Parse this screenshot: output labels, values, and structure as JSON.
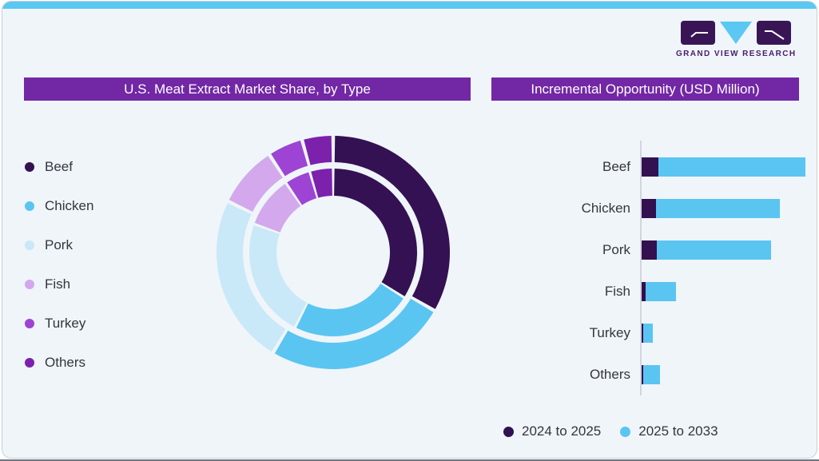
{
  "page": {
    "background": "#eff5f9",
    "top_accent_color": "#5ac8f2",
    "card_border_color": "#c7d0d9",
    "text_color": "#35353f",
    "header_bg_color": "#7227a5"
  },
  "logo": {
    "text": "GRAND VIEW RESEARCH",
    "block_color": "#3a1556",
    "triangle_color": "#5ac8f2",
    "wordmark_color": "#4b1b70"
  },
  "left_panel": {
    "title": "U.S. Meat Extract Market Share, by Type",
    "legend": [
      {
        "label": "Beef",
        "color": "#341152"
      },
      {
        "label": "Chicken",
        "color": "#5ac5f1"
      },
      {
        "label": "Pork",
        "color": "#c9e8f8"
      },
      {
        "label": "Fish",
        "color": "#d4a8ec"
      },
      {
        "label": "Turkey",
        "color": "#9d44d4"
      },
      {
        "label": "Others",
        "color": "#7b21ac"
      }
    ]
  },
  "right_panel": {
    "title": "Incremental Opportunity (USD Million)",
    "legend": [
      {
        "label": "2024 to 2025",
        "color": "#331050"
      },
      {
        "label": "2025 to 2033",
        "color": "#5ac5f1"
      }
    ]
  },
  "chart_data": [
    {
      "type": "donut",
      "title": "U.S. Meat Extract Market Share, by Type",
      "categories": [
        "Beef",
        "Chicken",
        "Pork",
        "Fish",
        "Turkey",
        "Others"
      ],
      "colors": [
        "#341152",
        "#5ac5f1",
        "#c9e8f8",
        "#d4a8ec",
        "#9d44d4",
        "#7b21ac"
      ],
      "units": "percent share (no numeric labels shown; estimated from arc angles)",
      "start_angle_deg": 0,
      "direction": "clockwise",
      "rings": [
        {
          "name": "outer",
          "values": [
            33.3,
            25.3,
            23.6,
            8.6,
            4.9,
            4.3
          ]
        },
        {
          "name": "inner",
          "values": [
            34.0,
            23.5,
            23.0,
            10.0,
            5.0,
            4.5
          ]
        }
      ]
    },
    {
      "type": "bar",
      "orientation": "horizontal",
      "stacked": true,
      "title": "Incremental Opportunity (USD Million)",
      "categories": [
        "Beef",
        "Chicken",
        "Pork",
        "Fish",
        "Turkey",
        "Others"
      ],
      "series": [
        {
          "name": "2024 to 2025",
          "color": "#331050",
          "values": [
            10.0,
            9.0,
            9.3,
            2.3,
            0.8,
            1.1
          ]
        },
        {
          "name": "2025 to 2033",
          "color": "#5ac5f1",
          "values": [
            90.0,
            75.4,
            69.5,
            18.7,
            5.9,
            10.0
          ]
        }
      ],
      "value_axis_visible": false,
      "legend_position": "bottom",
      "note": "No numeric axis shown in image; values are relative units estimated from bar lengths, largest stacked bar (Beef) = 100."
    }
  ]
}
